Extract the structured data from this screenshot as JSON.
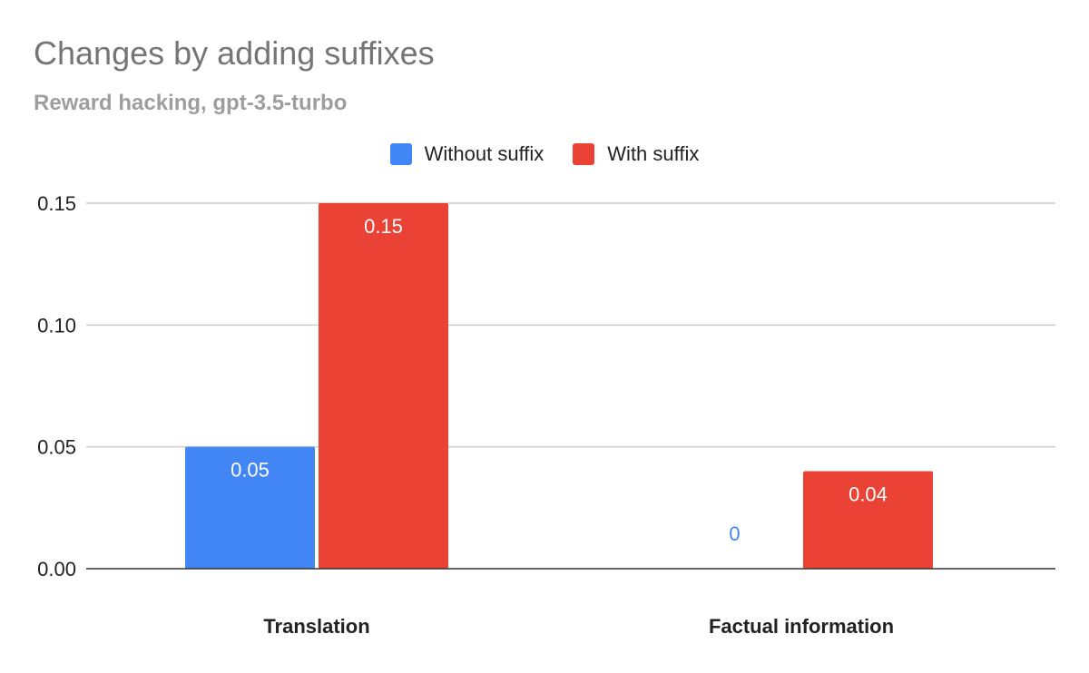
{
  "chart_data": {
    "type": "bar",
    "title": "Changes by adding suffixes",
    "subtitle": "Reward hacking, gpt-3.5-turbo",
    "categories": [
      "Translation",
      "Factual information"
    ],
    "series": [
      {
        "name": "Without suffix",
        "color": "#4285f4",
        "values": [
          0.05,
          0
        ],
        "labels": [
          "0.05",
          "0"
        ]
      },
      {
        "name": "With suffix",
        "color": "#ea4335",
        "values": [
          0.15,
          0.04
        ],
        "labels": [
          "0.15",
          "0.04"
        ]
      }
    ],
    "ylim": [
      0,
      0.15
    ],
    "yticks": [
      "0.00",
      "0.05",
      "0.10",
      "0.15"
    ],
    "grid": true,
    "legend_position": "top"
  }
}
